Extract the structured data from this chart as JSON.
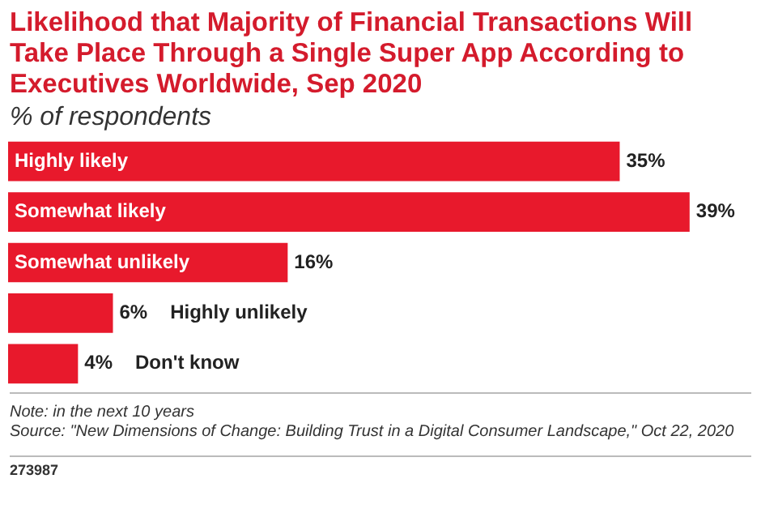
{
  "chart_data": {
    "type": "bar",
    "orientation": "horizontal",
    "title": "Likelihood that Majority of Financial Transactions Will Take Place Through a Single Super App According to Executives Worldwide, Sep 2020",
    "subtitle": "% of respondents",
    "categories": [
      "Highly likely",
      "Somewhat likely",
      "Somewhat unlikely",
      "Highly unlikely",
      "Don't know"
    ],
    "values": [
      35,
      39,
      16,
      6,
      4
    ],
    "color": "#e8192c",
    "value_labels": [
      "35%",
      "39%",
      "16%",
      "6%",
      "4%"
    ],
    "legend": false,
    "annotations": [
      "Note: in the next 10 years",
      "Source: \"New Dimensions of Change: Building Trust in a Digital Consumer Landscape,\" Oct 22, 2020",
      "273987"
    ]
  }
}
